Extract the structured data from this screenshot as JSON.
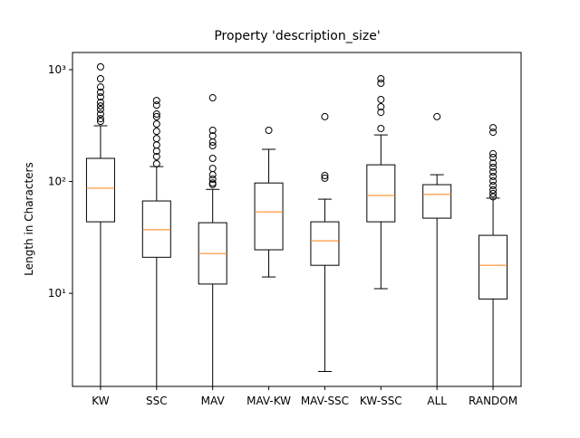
{
  "chart_data": {
    "type": "box",
    "title": "Property 'description_size'",
    "y_label": "Length in Characters",
    "log_scale_y": true,
    "ylim": [
      1.47,
      1425
    ],
    "yticks": [
      {
        "value": 10,
        "label": "10¹"
      },
      {
        "value": 100,
        "label": "10²"
      },
      {
        "value": 1000,
        "label": "10³"
      }
    ],
    "box_color": "#000000",
    "median_color": "#ff7f0e",
    "categories": [
      "KW",
      "SSC",
      "MAV",
      "MAV-KW",
      "MAV-SSC",
      "KW-SSC",
      "ALL",
      "RANDOM"
    ],
    "boxes": [
      {
        "whislo": 1,
        "q1": 43.6,
        "med": 87,
        "q3": 161,
        "whishi": 315,
        "fliers": [
          1060,
          830,
          700,
          627,
          571,
          511,
          474,
          440,
          401,
          365,
          345
        ]
      },
      {
        "whislo": 1,
        "q1": 21,
        "med": 37,
        "q3": 67,
        "whishi": 136,
        "fliers": [
          530,
          482,
          401,
          380,
          327,
          281,
          242,
          212,
          187,
          167,
          144
        ]
      },
      {
        "whislo": 1,
        "q1": 12.1,
        "med": 22.7,
        "q3": 42.8,
        "whishi": 85,
        "fliers": [
          561,
          287,
          256,
          225,
          209,
          161,
          131,
          115,
          105,
          97,
          94
        ]
      },
      {
        "whislo": 14,
        "q1": 24.5,
        "med": 53.5,
        "q3": 97,
        "whishi": 194,
        "fliers": [
          287
        ]
      },
      {
        "whislo": 2,
        "q1": 17.8,
        "med": 29.5,
        "q3": 43.6,
        "whishi": 69.5,
        "fliers": [
          380,
          113,
          107
        ]
      },
      {
        "whislo": 11,
        "q1": 43.6,
        "med": 75,
        "q3": 141,
        "whishi": 261,
        "fliers": [
          830,
          756,
          541,
          466,
          416,
          298
        ]
      },
      {
        "whislo": 1,
        "q1": 47,
        "med": 76.5,
        "q3": 93.7,
        "whishi": 115,
        "fliers": [
          380
        ]
      },
      {
        "whislo": 1,
        "q1": 8.9,
        "med": 17.8,
        "q3": 33,
        "whishi": 71,
        "fliers": [
          303,
          276,
          177,
          164,
          146,
          134,
          122,
          111,
          101,
          92,
          84,
          78,
          73
        ]
      }
    ]
  }
}
